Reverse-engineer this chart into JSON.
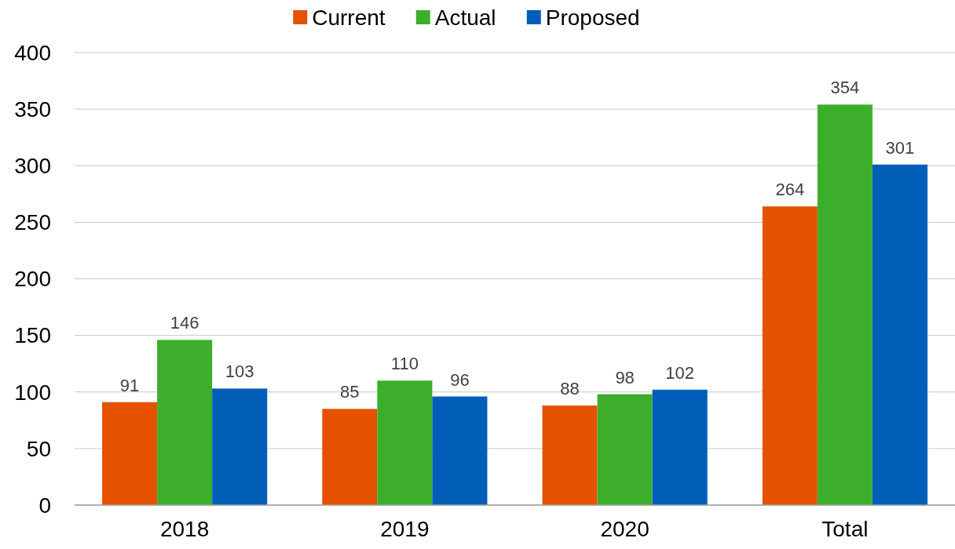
{
  "chart_data": {
    "type": "bar",
    "categories": [
      "2018",
      "2019",
      "2020",
      "Total"
    ],
    "series": [
      {
        "name": "Current",
        "color": "#e65100",
        "values": [
          91,
          85,
          88,
          264
        ]
      },
      {
        "name": "Actual",
        "color": "#3dae2b",
        "values": [
          146,
          110,
          98,
          354
        ]
      },
      {
        "name": "Proposed",
        "color": "#005eb8",
        "values": [
          103,
          96,
          102,
          301
        ]
      }
    ],
    "ylim": [
      0,
      400
    ],
    "yticks": [
      0,
      50,
      100,
      150,
      200,
      250,
      300,
      350,
      400
    ],
    "grid": "y",
    "legend": "top",
    "data_labels": true
  }
}
